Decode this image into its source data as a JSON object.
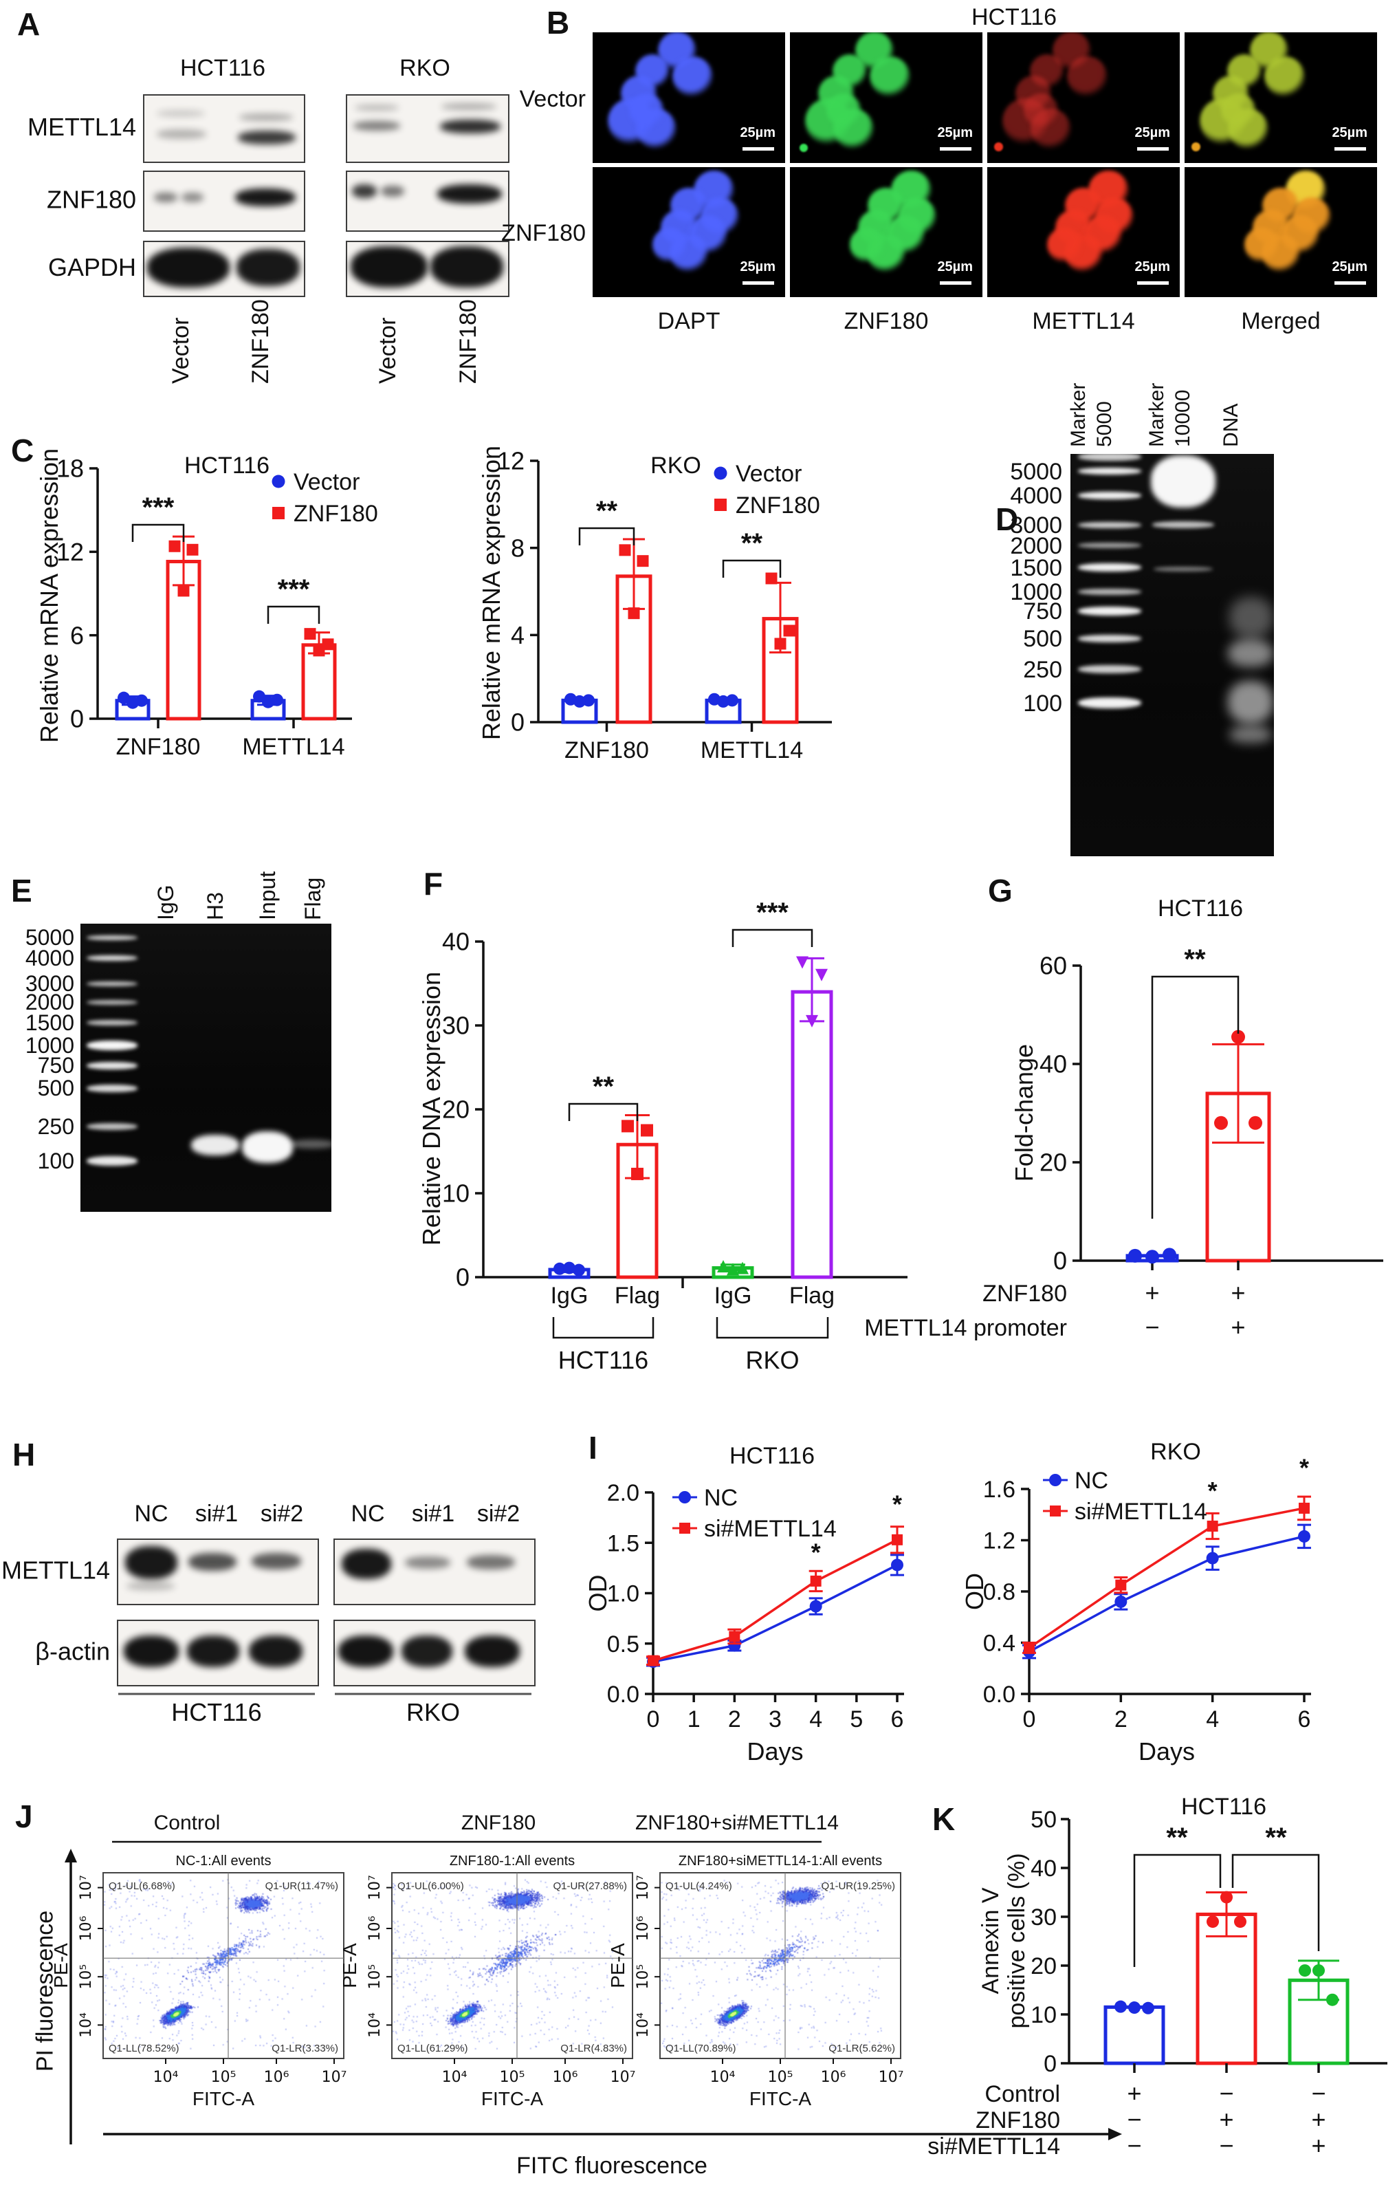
{
  "figure_labels": {
    "A": "A",
    "B": "B",
    "C": "C",
    "D": "D",
    "E": "E",
    "F": "F",
    "G": "G",
    "H": "H",
    "I": "I",
    "J": "J",
    "K": "K"
  },
  "panelA": {
    "label": "A",
    "rows": [
      "METTL14",
      "ZNF180",
      "GAPDH"
    ],
    "groups": [
      {
        "title": "HCT116",
        "lanes": [
          "Vector",
          "ZNF180"
        ]
      },
      {
        "title": "RKO",
        "lanes": [
          "Vector",
          "ZNF180"
        ]
      }
    ]
  },
  "panelB": {
    "label": "B",
    "title": "HCT116",
    "row_labels": [
      "Vector",
      "ZNF180"
    ],
    "col_labels": [
      "DAPT",
      "ZNF180",
      "METTL14",
      "Merged"
    ],
    "scale_bar": "25µm"
  },
  "panelD": {
    "label": "D",
    "lanes": [
      [
        "Marker",
        "5000"
      ],
      [
        "Marker",
        "10000"
      ],
      [
        "DNA"
      ]
    ],
    "ladder": [
      "5000",
      "4000",
      "3000",
      "2000",
      "1500",
      "1000",
      "750",
      "500",
      "250",
      "100"
    ]
  },
  "panelE": {
    "label": "E",
    "lanes": [
      "IgG",
      "H3",
      "Input",
      "Flag"
    ],
    "ladder": [
      "5000",
      "4000",
      "3000",
      "2000",
      "1500",
      "1000",
      "750",
      "500",
      "250",
      "100"
    ]
  },
  "panelH": {
    "label": "H",
    "rows": [
      "METTL14",
      "β-actin"
    ],
    "lanes": [
      "NC",
      "si#1",
      "si#2"
    ],
    "groups": [
      "HCT116",
      "RKO"
    ]
  },
  "panelJ": {
    "label": "J",
    "headers": [
      "Control",
      "ZNF180",
      "ZNF180+si#METTL14"
    ],
    "ylabel_outer": "PI fluorescence",
    "xlabel_outer": "FITC fluorescence",
    "plots": [
      {
        "title": "NC-1:All events",
        "quadrants": {
          "ul": "Q1-UL(6.68%)",
          "ur": "Q1-UR(11.47%)",
          "ll": "Q1-LL(78.52%)",
          "lr": "Q1-LR(3.33%)"
        },
        "xaxis": "FITC-A",
        "yaxis": "PE-A",
        "xticks": [
          "10⁴",
          "10⁵",
          "10⁶",
          "10⁷"
        ],
        "yticks": [
          "10⁴",
          "10⁵",
          "10⁶",
          "10⁷"
        ]
      },
      {
        "title": "ZNF180-1:All events",
        "quadrants": {
          "ul": "Q1-UL(6.00%)",
          "ur": "Q1-UR(27.88%)",
          "ll": "Q1-LL(61.29%)",
          "lr": "Q1-LR(4.83%)"
        },
        "xaxis": "FITC-A",
        "yaxis": "PE-A",
        "xticks": [
          "10⁴",
          "10⁵",
          "10⁶",
          "10⁷"
        ],
        "yticks": [
          "10⁴",
          "10⁵",
          "10⁶",
          "10⁷"
        ]
      },
      {
        "title": "ZNF180+siMETTL14-1:All events",
        "quadrants": {
          "ul": "Q1-UL(4.24%)",
          "ur": "Q1-UR(19.25%)",
          "ll": "Q1-LL(70.89%)",
          "lr": "Q1-LR(5.62%)"
        },
        "xaxis": "FITC-A",
        "yaxis": "PE-A",
        "xticks": [
          "10⁴",
          "10⁵",
          "10⁶",
          "10⁷"
        ],
        "yticks": [
          "10⁴",
          "10⁵",
          "10⁶",
          "10⁷"
        ]
      }
    ]
  },
  "chart_data": [
    {
      "id": "C-HCT116",
      "type": "bar",
      "title": "HCT116",
      "ylabel": "Relative mRNA expression",
      "ylim": [
        0,
        18
      ],
      "yticks": [
        0,
        6,
        12,
        18
      ],
      "categories": [
        "ZNF180",
        "METTL14"
      ],
      "series": [
        {
          "name": "Vector",
          "color": "#1b2be0",
          "marker": "circle",
          "values": [
            1.3,
            1.3
          ],
          "points": [
            [
              1.5,
              1.3,
              1.15
            ],
            [
              1.6,
              1.35,
              1.2
            ]
          ],
          "err": [
            [
              1.0,
              1.6
            ],
            [
              1.0,
              1.65
            ]
          ]
        },
        {
          "name": "ZNF180",
          "color": "#f11c1c",
          "marker": "square",
          "values": [
            11.3,
            5.3
          ],
          "points": [
            [
              12.4,
              12.15,
              9.2
            ],
            [
              6.1,
              5.35,
              4.9
            ]
          ],
          "err": [
            [
              9.6,
              13.1
            ],
            [
              4.7,
              6.2
            ]
          ]
        }
      ],
      "sig": [
        "***",
        "***"
      ]
    },
    {
      "id": "C-RKO",
      "type": "bar",
      "title": "RKO",
      "ylabel": "Relative mRNA expression",
      "ylim": [
        0,
        12
      ],
      "yticks": [
        0,
        4,
        8,
        12
      ],
      "categories": [
        "ZNF180",
        "METTL14"
      ],
      "series": [
        {
          "name": "Vector",
          "color": "#1b2be0",
          "marker": "circle",
          "values": [
            1.0,
            1.0
          ],
          "points": [
            [
              1.05,
              1.0,
              0.95
            ],
            [
              1.05,
              1.0,
              0.95
            ]
          ],
          "err": [
            [
              0.9,
              1.1
            ],
            [
              0.9,
              1.1
            ]
          ]
        },
        {
          "name": "ZNF180",
          "color": "#f11c1c",
          "marker": "square",
          "values": [
            6.7,
            4.75
          ],
          "points": [
            [
              7.9,
              7.4,
              5.0
            ],
            [
              6.6,
              4.2,
              3.6
            ]
          ],
          "err": [
            [
              5.2,
              8.4
            ],
            [
              3.2,
              6.4
            ]
          ]
        }
      ],
      "sig": [
        "**",
        "**"
      ]
    },
    {
      "id": "F",
      "type": "bar",
      "ylabel": "Relative DNA expression",
      "ylim": [
        0,
        40
      ],
      "yticks": [
        0,
        10,
        20,
        30,
        40
      ],
      "groups": [
        {
          "name": "HCT116",
          "sig": "**",
          "bars": [
            {
              "label": "IgG",
              "color": "#1b2be0",
              "marker": "circle",
              "value": 0.9,
              "points": [
                1.0,
                0.85,
                1.1
              ],
              "err": [
                0.6,
                1.2
              ]
            },
            {
              "label": "Flag",
              "color": "#f11c1c",
              "marker": "square",
              "value": 15.8,
              "points": [
                18.0,
                17.5,
                12.3
              ],
              "err": [
                11.8,
                19.3
              ]
            }
          ]
        },
        {
          "name": "RKO",
          "sig": "***",
          "bars": [
            {
              "label": "IgG",
              "color": "#17bd2c",
              "marker": "triangle-up",
              "value": 1.1,
              "points": [
                1.3,
                1.1,
                0.95
              ],
              "err": [
                0.8,
                1.5
              ]
            },
            {
              "label": "Flag",
              "color": "#a01ef0",
              "marker": "triangle-down",
              "value": 34.0,
              "points": [
                37.5,
                36.0,
                30.5
              ],
              "err": [
                30.5,
                38.0
              ]
            }
          ]
        }
      ]
    },
    {
      "id": "G",
      "type": "bar",
      "title": "HCT116",
      "ylabel": "Fold-change",
      "ylim": [
        0,
        60
      ],
      "yticks": [
        0,
        20,
        40,
        60
      ],
      "sig": "**",
      "bars": [
        {
          "label": "",
          "color": "#1b2be0",
          "marker": "circle",
          "value": 1.0,
          "points": [
            0.8,
            1.0,
            1.2
          ]
        },
        {
          "label": "",
          "color": "#f11c1c",
          "marker": "circle",
          "value": 34.0,
          "points": [
            45.5,
            28.0,
            28.0
          ],
          "err": [
            24.0,
            44.0
          ]
        }
      ],
      "rows": [
        {
          "label": "ZNF180",
          "values": [
            "+",
            "+"
          ]
        },
        {
          "label": "METTL14 promoter",
          "values": [
            "−",
            "+"
          ]
        }
      ]
    },
    {
      "id": "I-HCT116",
      "type": "line",
      "title": "HCT116",
      "xlabel": "Days",
      "ylabel": "OD",
      "xticks": [
        0,
        1,
        2,
        3,
        4,
        5,
        6
      ],
      "ytick_vals": [
        0,
        0.5,
        1,
        1.5,
        2
      ],
      "ytick_labels": [
        "0.0",
        "0.5",
        "1.0",
        "1.5",
        "2.0"
      ],
      "x": [
        0,
        2,
        4,
        6
      ],
      "series": [
        {
          "name": "NC",
          "color": "#1b2be0",
          "marker": "circle",
          "values": [
            0.32,
            0.48,
            0.87,
            1.28
          ],
          "err": [
            0.04,
            0.05,
            0.08,
            0.1
          ]
        },
        {
          "name": "si#METTL14",
          "color": "#f11c1c",
          "marker": "square",
          "values": [
            0.33,
            0.57,
            1.12,
            1.53
          ],
          "err": [
            0.04,
            0.07,
            0.1,
            0.13
          ]
        }
      ],
      "asterisks": [
        {
          "x": 4,
          "y": 1.32,
          "label": "*"
        },
        {
          "x": 6,
          "y": 1.8,
          "label": "*"
        }
      ]
    },
    {
      "id": "I-RKO",
      "type": "line",
      "title": "RKO",
      "xlabel": "Days",
      "ylabel": "OD",
      "xticks": [
        0,
        2,
        4,
        6
      ],
      "ytick_vals": [
        0,
        0.4,
        0.8,
        1.2,
        1.6
      ],
      "ytick_labels": [
        "0.0",
        "0.4",
        "0.8",
        "1.2",
        "1.6"
      ],
      "x": [
        0,
        2,
        4,
        6
      ],
      "series": [
        {
          "name": "NC",
          "color": "#1b2be0",
          "marker": "circle",
          "values": [
            0.33,
            0.72,
            1.06,
            1.23
          ],
          "err": [
            0.05,
            0.06,
            0.09,
            0.09
          ]
        },
        {
          "name": "si#METTL14",
          "color": "#f11c1c",
          "marker": "square",
          "values": [
            0.36,
            0.85,
            1.31,
            1.45
          ],
          "err": [
            0.04,
            0.06,
            0.1,
            0.09
          ]
        }
      ],
      "asterisks": [
        {
          "x": 4,
          "y": 1.52,
          "label": "*"
        },
        {
          "x": 6,
          "y": 1.7,
          "label": "*"
        }
      ]
    },
    {
      "id": "K",
      "type": "bar",
      "title": "HCT116",
      "ylabel_lines": [
        "Annexin V",
        "positive cells (%)"
      ],
      "ylim": [
        0,
        50
      ],
      "yticks": [
        0,
        10,
        20,
        30,
        40,
        50
      ],
      "bars": [
        {
          "label": "Control",
          "color": "#1b2be0",
          "marker": "circle",
          "value": 11.5,
          "points": [
            11.4,
            11.6,
            11.3
          ]
        },
        {
          "label": "ZNF180",
          "color": "#f11c1c",
          "marker": "circle",
          "value": 30.5,
          "points": [
            34.0,
            29.0,
            29.0
          ],
          "err": [
            26.0,
            35.0
          ]
        },
        {
          "label": "si#METTL14",
          "color": "#17bd2c",
          "marker": "circle",
          "value": 17.0,
          "points": [
            19.0,
            19.0,
            13.0
          ],
          "err": [
            13.0,
            21.0
          ]
        }
      ],
      "sig": [
        {
          "from": 0,
          "to": 1,
          "label": "**"
        },
        {
          "from": 1,
          "to": 2,
          "label": "**"
        }
      ],
      "rows": [
        {
          "label": "Control",
          "values": [
            "+",
            "−",
            "−"
          ]
        },
        {
          "label": "ZNF180",
          "values": [
            "−",
            "+",
            "+"
          ]
        },
        {
          "label": "si#METTL14",
          "values": [
            "−",
            "−",
            "+"
          ]
        }
      ]
    }
  ]
}
